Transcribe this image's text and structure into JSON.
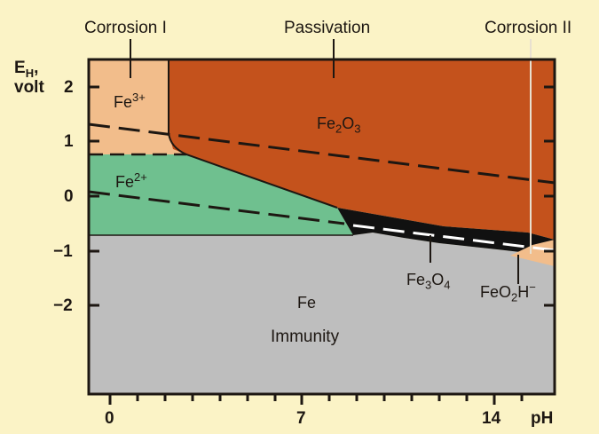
{
  "regions": {
    "corrosion_1": "Corrosion I",
    "passivation": "Passivation",
    "corrosion_2": "Corrosion II",
    "immunity": "Immunity"
  },
  "axes": {
    "y_label_line1": "E",
    "y_label_sub": "H",
    "y_label_comma": ",",
    "y_label_line2": "volt",
    "x_label": "pH",
    "y_ticks": [
      "2",
      "1",
      "0",
      "−1",
      "−2"
    ],
    "x_ticks": [
      "0",
      "7",
      "14"
    ]
  },
  "species": {
    "fe3_base": "Fe",
    "fe3_sup": "3+",
    "fe2_base": "Fe",
    "fe2_sup": "2+",
    "fe2o3_a": "Fe",
    "fe2o3_sub1": "2",
    "fe2o3_b": "O",
    "fe2o3_sub2": "3",
    "fe3o4_a": "Fe",
    "fe3o4_sub1": "3",
    "fe3o4_b": "O",
    "fe3o4_sub2": "4",
    "feo2h_a": "FeO",
    "feo2h_sub": "2",
    "feo2h_b": "H",
    "feo2h_sup": "−",
    "fe": "Fe"
  },
  "colors": {
    "background": "#fbf3c6",
    "fe3_region": "#f2bd8b",
    "passivation_region": "#c4521c",
    "fe2_region": "#6fc08f",
    "immunity_region": "#bebebe",
    "magnetite_band": "#111111",
    "frame": "#1d1712"
  }
}
